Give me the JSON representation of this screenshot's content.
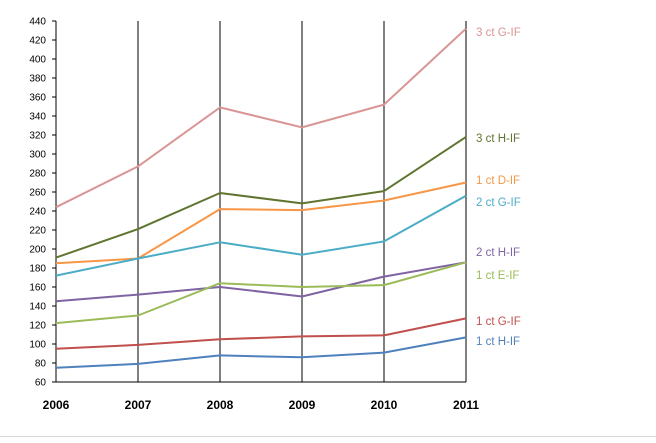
{
  "chart_data": {
    "type": "line",
    "title": "",
    "xlabel": "",
    "ylabel": "",
    "x": [
      "2006",
      "2007",
      "2008",
      "2009",
      "2010",
      "2011"
    ],
    "ylim": [
      60,
      440
    ],
    "ytick_step": 20,
    "vertical_gridlines": true,
    "horizontal_gridlines": false,
    "legend": "labels at right end of each line",
    "series": [
      {
        "name": "3 ct G-IF",
        "color": "#d99694",
        "values": [
          244,
          287,
          349,
          328,
          352,
          432
        ]
      },
      {
        "name": "3 ct H-IF",
        "color": "#5f7530",
        "values": [
          191,
          221,
          259,
          248,
          261,
          318
        ]
      },
      {
        "name": "1 ct D-IF",
        "color": "#f79646",
        "values": [
          185,
          190,
          242,
          241,
          251,
          270
        ]
      },
      {
        "name": "2 ct G-IF",
        "color": "#4bacc6",
        "values": [
          172,
          190,
          207,
          194,
          208,
          256
        ]
      },
      {
        "name": "2 ct H-IF",
        "color": "#8064a2",
        "values": [
          145,
          152,
          160,
          150,
          171,
          186
        ]
      },
      {
        "name": "1 ct E-IF",
        "color": "#9bbb59",
        "values": [
          122,
          130,
          164,
          160,
          162,
          186
        ]
      },
      {
        "name": "1 ct G-IF",
        "color": "#c0504d",
        "values": [
          95,
          99,
          105,
          108,
          109,
          127
        ]
      },
      {
        "name": "1 ct H-IF",
        "color": "#4f81bd",
        "values": [
          75,
          79,
          88,
          86,
          91,
          107
        ]
      }
    ]
  }
}
